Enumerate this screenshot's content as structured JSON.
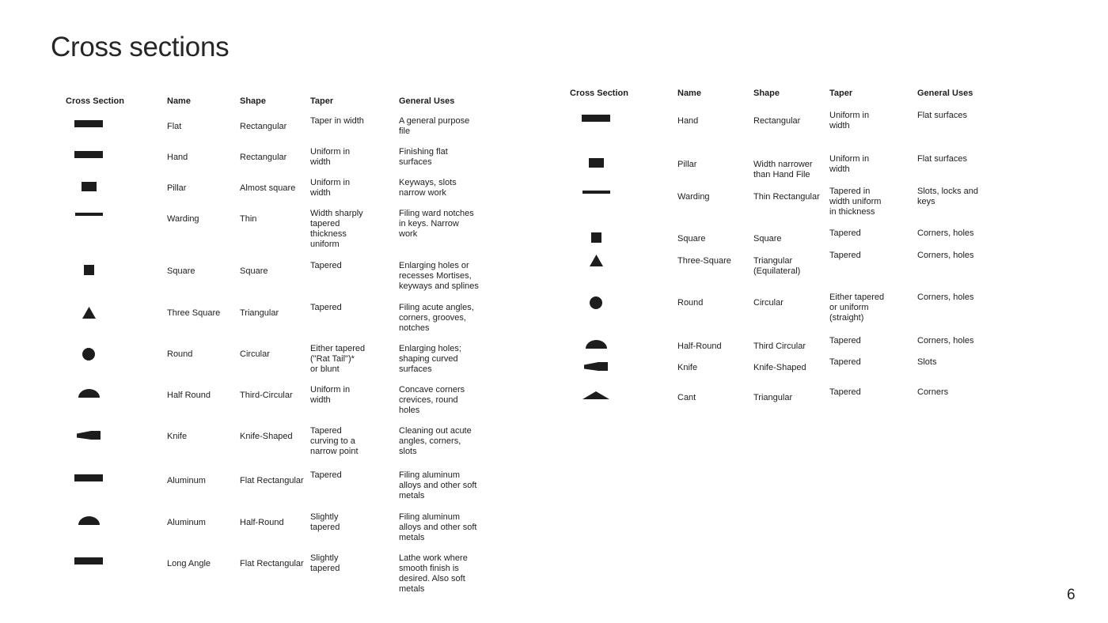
{
  "page": {
    "title": "Cross sections",
    "page_number": "6"
  },
  "colors": {
    "shape_fill": "#1d1d1d",
    "text": "#1e1e1e"
  },
  "left_table": {
    "headers": [
      "Cross Section",
      "Name",
      "Shape",
      "Taper",
      "General Uses"
    ],
    "rows": [
      {
        "icon": "flat-bar",
        "name": "Flat",
        "shape": "Rectangular",
        "taper": "Taper in width",
        "uses": "A general purpose\nfile"
      },
      {
        "icon": "flat-bar",
        "name": "Hand",
        "shape": "Rectangular",
        "taper": "Uniform in\nwidth",
        "uses": "Finishing flat\nsurfaces"
      },
      {
        "icon": "small-rectangle",
        "name": "Pillar",
        "shape": "Almost square",
        "taper": "Uniform in\nwidth",
        "uses": "Keyways, slots\nnarrow work"
      },
      {
        "icon": "thin-line",
        "name": "Warding",
        "shape": "Thin",
        "taper": "Width sharply\ntapered\nthickness\nuniform",
        "uses": "Filing ward notches\nin keys. Narrow\nwork"
      },
      {
        "icon": "square",
        "name": "Square",
        "shape": "Square",
        "taper": "Tapered",
        "uses": "Enlarging holes or\nrecesses Mortises,\nkeyways and splines"
      },
      {
        "icon": "triangle",
        "name": "Three Square",
        "shape": "Triangular",
        "taper": "Tapered",
        "uses": "Filing acute angles,\ncorners, grooves,\nnotches"
      },
      {
        "icon": "circle",
        "name": "Round",
        "shape": "Circular",
        "taper": "Either tapered\n(\"Rat Tail\")*\nor blunt",
        "uses": "Enlarging holes;\nshaping curved\nsurfaces"
      },
      {
        "icon": "half-round",
        "name": "Half Round",
        "shape": "Third-Circular",
        "taper": "Uniform in\nwidth",
        "uses": "Concave corners\ncrevices, round\nholes"
      },
      {
        "icon": "knife",
        "name": "Knife",
        "shape": "Knife-Shaped",
        "taper": "Tapered\ncurving to a\nnarrow point",
        "uses": "Cleaning out acute\nangles, corners,\nslots"
      },
      {
        "icon": "flat-bar",
        "name": "Aluminum",
        "shape": "Flat Rectangular",
        "taper": "Tapered",
        "uses": "Filing aluminum\nalloys and other soft\nmetals"
      },
      {
        "icon": "half-round",
        "name": "Aluminum",
        "shape": "Half-Round",
        "taper": "Slightly\ntapered",
        "uses": "Filing aluminum\nalloys and other soft\nmetals"
      },
      {
        "icon": "flat-bar",
        "name": "Long Angle",
        "shape": "Flat Rectangular",
        "taper": "Slightly\ntapered",
        "uses": "Lathe work where\nsmooth finish is\ndesired. Also soft\nmetals"
      }
    ]
  },
  "right_table": {
    "headers": [
      "Cross Section",
      "Name",
      "Shape",
      "Taper",
      "General Uses"
    ],
    "rows": [
      {
        "icon": "flat-bar",
        "name": "Hand",
        "shape": "Rectangular",
        "taper": "Uniform in\nwidth",
        "uses": "Flat surfaces"
      },
      {
        "icon": "small-rectangle",
        "name": "Pillar",
        "shape": "Width narrower\nthan Hand File",
        "taper": "Uniform in\nwidth",
        "uses": "Flat surfaces"
      },
      {
        "icon": "thin-line",
        "name": "Warding",
        "shape": "Thin Rectangular",
        "taper": "Tapered in\nwidth uniform\nin thickness",
        "uses": "Slots, locks and\nkeys"
      },
      {
        "icon": "square",
        "name": "Square",
        "shape": "Square",
        "taper": "Tapered",
        "uses": "Corners, holes"
      },
      {
        "icon": "triangle",
        "name": "Three-Square",
        "shape": "Triangular\n(Equilateral)",
        "taper": "Tapered",
        "uses": "Corners, holes"
      },
      {
        "icon": "circle",
        "name": "Round",
        "shape": "Circular",
        "taper": "Either tapered\nor uniform\n(straight)",
        "uses": "Corners, holes"
      },
      {
        "icon": "half-round",
        "name": "Half-Round",
        "shape": "Third Circular",
        "taper": "Tapered",
        "uses": "Corners, holes"
      },
      {
        "icon": "knife",
        "name": "Knife",
        "shape": "Knife-Shaped",
        "taper": "Tapered",
        "uses": "Slots"
      },
      {
        "icon": "cant",
        "name": "Cant",
        "shape": "Triangular",
        "taper": "Tapered",
        "uses": "Corners"
      }
    ]
  }
}
